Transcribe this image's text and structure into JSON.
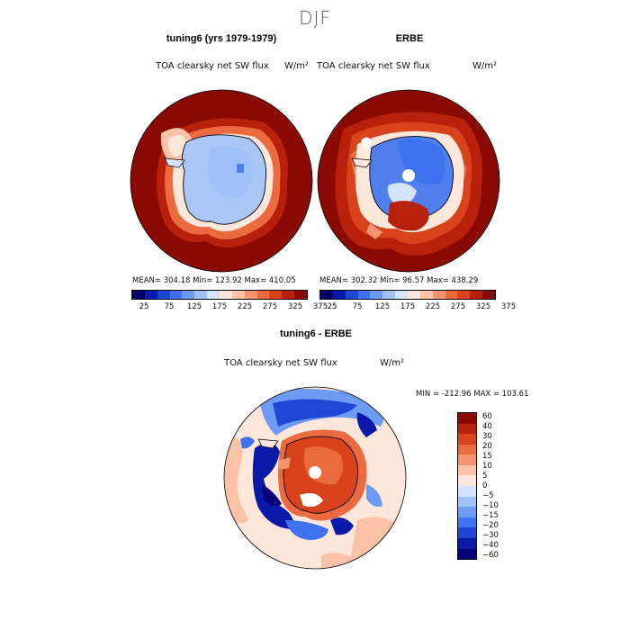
{
  "season": "DJF",
  "colors": {
    "absolute_scale": [
      "#08006a",
      "#0a1aa8",
      "#1f47d6",
      "#3f72ee",
      "#6d9bf4",
      "#9fc0f8",
      "#d4e4fb",
      "#fde7da",
      "#fbc2a7",
      "#f69470",
      "#ec6a3f",
      "#d9431c",
      "#b7200a",
      "#8a0a03"
    ],
    "difference_scale": [
      "#08007a",
      "#0a1aa8",
      "#1f47d6",
      "#3f72ee",
      "#6d9bf4",
      "#9fc0f8",
      "#d4e4fb",
      "#fde7da",
      "#fbc2a7",
      "#f69470",
      "#ec6a3f",
      "#d9431c",
      "#b7200a",
      "#8a0a03"
    ],
    "continent_light": "#a9c6f7",
    "continent_deep": "#4f7fef",
    "ocean_high": "#8a0a03"
  },
  "chart_data": [
    {
      "type": "heatmap",
      "projection": "polar-stereographic-south",
      "title": "tuning6 (yrs 1979-1979)",
      "variable_label": "TOA clearsky net SW flux",
      "units": "W/m²",
      "stats": {
        "mean": "304.18",
        "min": "123.92",
        "max": "410.05",
        "text": "MEAN= 304.18   Min= 123.92   Max= 410.05"
      },
      "colorbar_ticks": [
        "25",
        "75",
        "125",
        "175",
        "225",
        "275",
        "325",
        "375"
      ]
    },
    {
      "type": "heatmap",
      "projection": "polar-stereographic-south",
      "title": "ERBE",
      "variable_label": "TOA clearsky net SW flux",
      "units": "W/m²",
      "stats": {
        "mean": "302.32",
        "min": "96.57",
        "max": "438.29",
        "text": "MEAN= 302.32   Min=   96.57   Max= 438.29"
      },
      "colorbar_ticks": [
        "25",
        "75",
        "125",
        "175",
        "225",
        "275",
        "325",
        "375"
      ]
    },
    {
      "type": "heatmap",
      "projection": "polar-stereographic-south",
      "title": "tuning6 - ERBE",
      "variable_label": "TOA clearsky net SW flux",
      "units": "W/m²",
      "stats": {
        "min": "-212.96",
        "max": "103.61",
        "text": "MIN = -212.96  MAX = 103.61"
      },
      "colorbar_ticks": [
        "60",
        "40",
        "30",
        "20",
        "15",
        "10",
        "5",
        "0",
        "−5",
        "−10",
        "−15",
        "−20",
        "−30",
        "−40",
        "−60"
      ]
    }
  ]
}
